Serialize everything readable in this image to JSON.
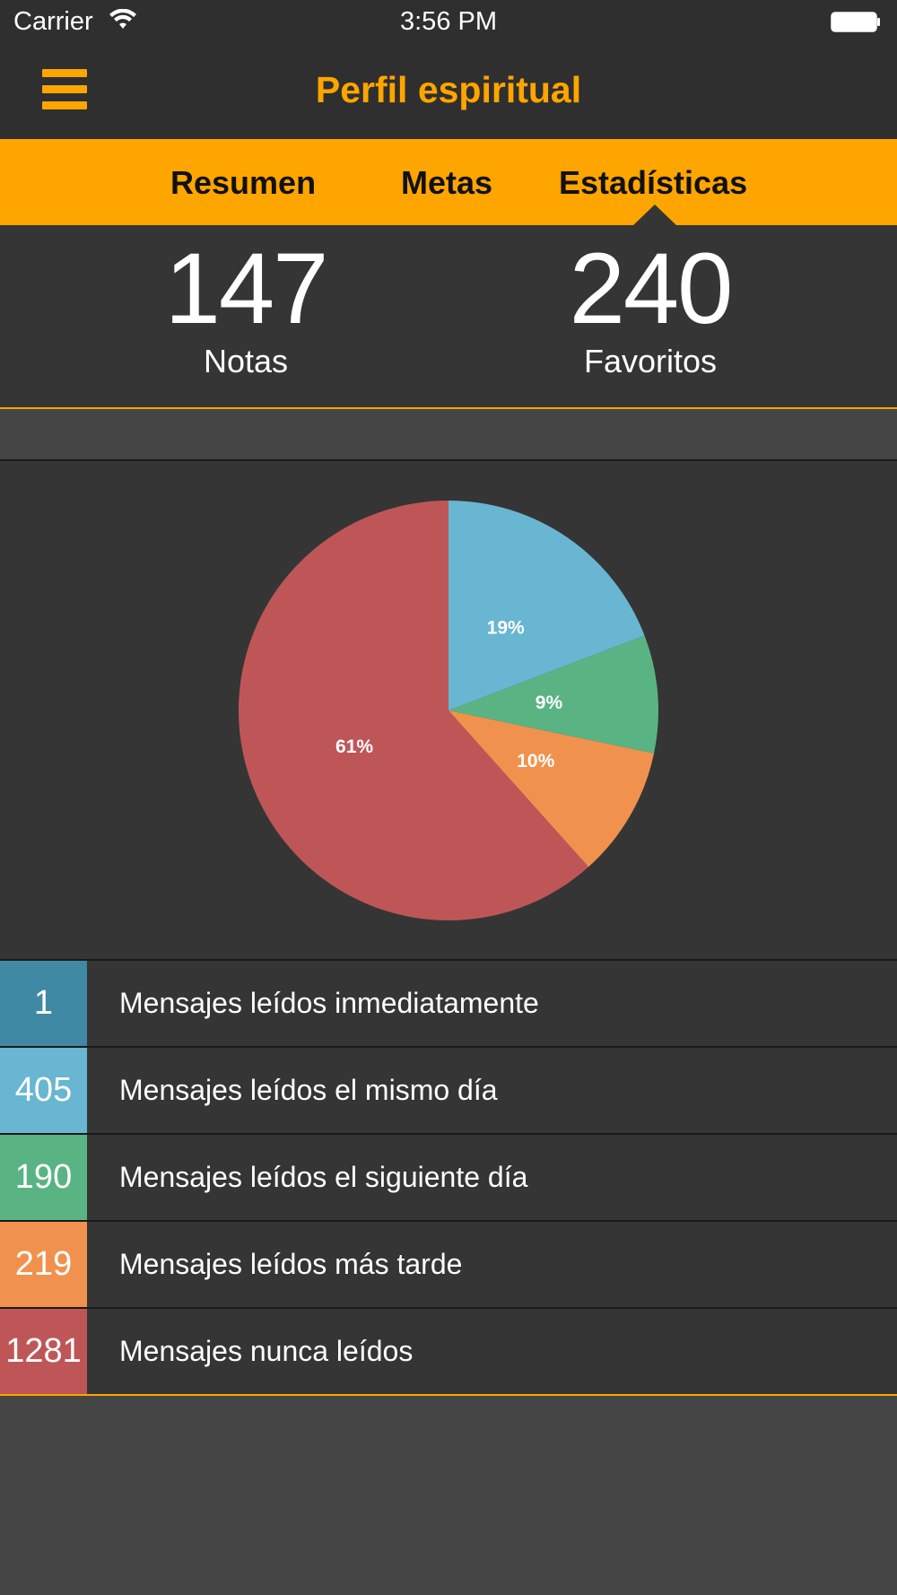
{
  "status_bar": {
    "carrier": "Carrier",
    "time": "3:56 PM"
  },
  "nav": {
    "title": "Perfil espiritual",
    "menu_icon": "hamburger-menu-icon",
    "accent_color": "#ffa500"
  },
  "tabs": [
    {
      "label": "Resumen",
      "selected": false
    },
    {
      "label": "Metas",
      "selected": false
    },
    {
      "label": "Estadísticas",
      "selected": true
    }
  ],
  "stats": {
    "notes_count": "147",
    "notes_label": "Notas",
    "favorites_count": "240",
    "favorites_label": "Favoritos"
  },
  "chart_data": {
    "type": "pie",
    "slices": [
      {
        "label": "19%",
        "value": 19,
        "color": "#68b6d1"
      },
      {
        "label": "9%",
        "value": 9,
        "color": "#5ab383"
      },
      {
        "label": "10%",
        "value": 10,
        "color": "#f0924e"
      },
      {
        "label": "61%",
        "value": 61,
        "color": "#be5658"
      }
    ]
  },
  "legend": [
    {
      "count": "1",
      "text": "Mensajes leídos inmediatamente",
      "color": "#3f89a5"
    },
    {
      "count": "405",
      "text": "Mensajes leídos el mismo día",
      "color": "#68b6d1"
    },
    {
      "count": "190",
      "text": "Mensajes leídos el siguiente día",
      "color": "#5ab383"
    },
    {
      "count": "219",
      "text": "Mensajes leídos más tarde",
      "color": "#f0924e"
    },
    {
      "count": "1281",
      "text": "Mensajes nunca leídos",
      "color": "#be5658"
    }
  ]
}
